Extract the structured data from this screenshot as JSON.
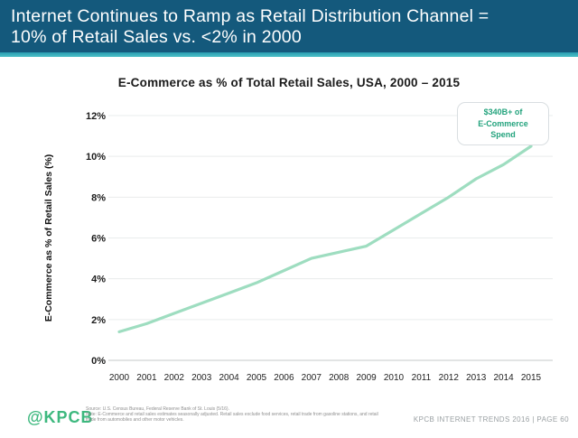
{
  "header": {
    "line1": "Internet Continues to Ramp as Retail Distribution Channel =",
    "line2": "10% of Retail Sales vs. <2% in 2000"
  },
  "chart_data": {
    "type": "line",
    "title": "E-Commerce as % of Total Retail Sales, USA, 2000 – 2015",
    "x": [
      2000,
      2001,
      2002,
      2003,
      2004,
      2005,
      2006,
      2007,
      2008,
      2009,
      2010,
      2011,
      2012,
      2013,
      2014,
      2015
    ],
    "series": [
      {
        "name": "E-Commerce as % of Retail Sales",
        "values": [
          1.4,
          1.8,
          2.3,
          2.8,
          3.3,
          3.8,
          4.4,
          5.0,
          5.3,
          5.6,
          6.4,
          7.2,
          8.0,
          8.9,
          9.6,
          10.5
        ]
      }
    ],
    "xlabel": "",
    "ylabel": "E-Commerce as % of Retail Sales (%)",
    "ylim": [
      0,
      12
    ],
    "ytick_step": 2,
    "ytick_suffix": "%",
    "grid": true,
    "legend": "none",
    "line_color": "#9eddc0",
    "annotation": {
      "lines": [
        "$340B+ of",
        "E-Commerce",
        "Spend"
      ],
      "color": "#23a37d"
    }
  },
  "footer": {
    "logo": "@KPCB",
    "source_line1": "Source: U.S. Census Bureau, Federal Reserve Bank of St. Louis (5/16).",
    "source_line2": "Note: E-Commerce and retail sales estimates seasonally adjusted. Retail sales exclude food services, retail trade from gasoline stations, and retail trade from automobiles and other motor vehicles.",
    "branding": "KPCB INTERNET TRENDS 2016   |   PAGE 60"
  }
}
